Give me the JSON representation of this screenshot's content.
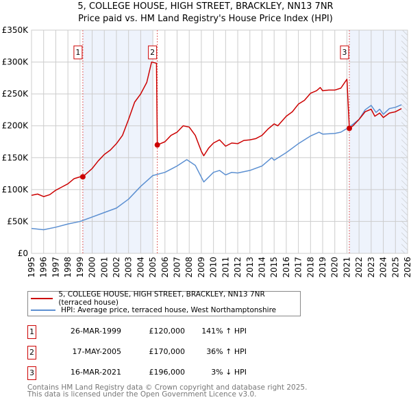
{
  "title_line1": "5, COLLEGE HOUSE, HIGH STREET, BRACKLEY, NN13 7NR",
  "title_line2": "Price paid vs. HM Land Registry's House Price Index (HPI)",
  "colors": {
    "red": "#cc0000",
    "blue": "#5b8fd1",
    "shade": "#eef3fc",
    "grid": "#cccccc"
  },
  "chart_data": {
    "type": "line",
    "title": "5, COLLEGE HOUSE, HIGH STREET, BRACKLEY, NN13 7NR — Price paid vs. HM Land Registry's House Price Index (HPI)",
    "xlim": [
      1995,
      2026
    ],
    "ylim": [
      0,
      350000
    ],
    "x_ticks": [
      "1995",
      "1996",
      "1997",
      "1998",
      "1999",
      "2000",
      "2001",
      "2002",
      "2003",
      "2004",
      "2005",
      "2006",
      "2007",
      "2008",
      "2009",
      "2010",
      "2011",
      "2012",
      "2013",
      "2014",
      "2015",
      "2016",
      "2017",
      "2018",
      "2019",
      "2020",
      "2021",
      "2022",
      "2023",
      "2024",
      "2025",
      "2026"
    ],
    "y_ticks": [
      {
        "v": 0,
        "label": "£0"
      },
      {
        "v": 50000,
        "label": "£50K"
      },
      {
        "v": 100000,
        "label": "£100K"
      },
      {
        "v": 150000,
        "label": "£150K"
      },
      {
        "v": 200000,
        "label": "£200K"
      },
      {
        "v": 250000,
        "label": "£250K"
      },
      {
        "v": 300000,
        "label": "£300K"
      },
      {
        "v": 350000,
        "label": "£350K"
      }
    ],
    "grid": true,
    "shaded_ranges": [
      [
        1999.23,
        2005.0
      ],
      [
        2021.2,
        2026
      ]
    ],
    "hatch_from": 2025.5,
    "series": [
      {
        "name": "5, COLLEGE HOUSE, HIGH STREET, BRACKLEY, NN13 7NR (terraced house)",
        "color": "#cc0000",
        "points": [
          [
            1995,
            91
          ],
          [
            1995.5,
            93
          ],
          [
            1996,
            89
          ],
          [
            1996.5,
            92
          ],
          [
            1997,
            99
          ],
          [
            1997.5,
            104
          ],
          [
            1998,
            109
          ],
          [
            1998.5,
            117
          ],
          [
            1999,
            120
          ],
          [
            1999.23,
            120
          ],
          [
            2000,
            133
          ],
          [
            2000.5,
            145
          ],
          [
            2001,
            155
          ],
          [
            2001.5,
            162
          ],
          [
            2002,
            172
          ],
          [
            2002.5,
            185
          ],
          [
            2003,
            210
          ],
          [
            2003.5,
            237
          ],
          [
            2004,
            250
          ],
          [
            2004.5,
            268
          ],
          [
            2004.9,
            300
          ],
          [
            2005.3,
            298
          ],
          [
            2005.37,
            170
          ],
          [
            2006,
            175
          ],
          [
            2006.5,
            185
          ],
          [
            2007,
            190
          ],
          [
            2007.5,
            200
          ],
          [
            2008,
            198
          ],
          [
            2008.5,
            185
          ],
          [
            2009,
            160
          ],
          [
            2009.2,
            153
          ],
          [
            2009.6,
            165
          ],
          [
            2010,
            173
          ],
          [
            2010.5,
            178
          ],
          [
            2011,
            168
          ],
          [
            2011.5,
            173
          ],
          [
            2012,
            172
          ],
          [
            2012.5,
            177
          ],
          [
            2013,
            178
          ],
          [
            2013.5,
            180
          ],
          [
            2014,
            185
          ],
          [
            2014.5,
            195
          ],
          [
            2015,
            203
          ],
          [
            2015.3,
            200
          ],
          [
            2016,
            215
          ],
          [
            2016.5,
            222
          ],
          [
            2017,
            234
          ],
          [
            2017.5,
            240
          ],
          [
            2018,
            251
          ],
          [
            2018.5,
            255
          ],
          [
            2018.8,
            260
          ],
          [
            2019,
            255
          ],
          [
            2019.5,
            256
          ],
          [
            2020,
            256
          ],
          [
            2020.5,
            259
          ],
          [
            2021,
            273
          ],
          [
            2021.2,
            196
          ],
          [
            2021.5,
            200
          ],
          [
            2022,
            210
          ],
          [
            2022.5,
            222
          ],
          [
            2023,
            226
          ],
          [
            2023.3,
            215
          ],
          [
            2023.7,
            220
          ],
          [
            2024,
            213
          ],
          [
            2024.5,
            220
          ],
          [
            2025,
            222
          ],
          [
            2025.5,
            227
          ]
        ]
      },
      {
        "name": "HPI: Average price, terraced house, West Northamptonshire",
        "color": "#5b8fd1",
        "points": [
          [
            1995,
            39
          ],
          [
            1996,
            37
          ],
          [
            1997,
            41
          ],
          [
            1998,
            46
          ],
          [
            1999,
            50
          ],
          [
            2000,
            57
          ],
          [
            2001,
            64
          ],
          [
            2002,
            71
          ],
          [
            2003,
            85
          ],
          [
            2004,
            105
          ],
          [
            2005,
            122
          ],
          [
            2006,
            127
          ],
          [
            2007,
            137
          ],
          [
            2007.8,
            147
          ],
          [
            2008.5,
            138
          ],
          [
            2009.2,
            112
          ],
          [
            2010,
            127
          ],
          [
            2010.5,
            130
          ],
          [
            2011,
            123
          ],
          [
            2011.5,
            127
          ],
          [
            2012,
            126
          ],
          [
            2013,
            130
          ],
          [
            2014,
            137
          ],
          [
            2014.8,
            150
          ],
          [
            2015,
            146
          ],
          [
            2016,
            158
          ],
          [
            2017,
            172
          ],
          [
            2018,
            184
          ],
          [
            2018.7,
            190
          ],
          [
            2019,
            187
          ],
          [
            2020,
            188
          ],
          [
            2020.5,
            190
          ],
          [
            2021.2,
            198
          ],
          [
            2022,
            210
          ],
          [
            2022.5,
            225
          ],
          [
            2023,
            232
          ],
          [
            2023.4,
            221
          ],
          [
            2023.7,
            226
          ],
          [
            2024,
            218
          ],
          [
            2024.5,
            227
          ],
          [
            2025,
            229
          ],
          [
            2025.5,
            233
          ]
        ]
      }
    ],
    "y_unit": "thousands GBP",
    "sales": [
      {
        "label": "1",
        "x": 1999.23,
        "price": 120
      },
      {
        "label": "2",
        "x": 2005.37,
        "price": 170
      },
      {
        "label": "3",
        "x": 2021.2,
        "price": 196
      }
    ]
  },
  "legend": [
    {
      "label": "5, COLLEGE HOUSE, HIGH STREET, BRACKLEY, NN13 7NR (terraced house)"
    },
    {
      "label": "HPI: Average price, terraced house, West Northamptonshire"
    }
  ],
  "table": [
    {
      "num": "1",
      "date": "26-MAR-1999",
      "price": "£120,000",
      "hpi": "141% ↑ HPI"
    },
    {
      "num": "2",
      "date": "17-MAY-2005",
      "price": "£170,000",
      "hpi": "36% ↑ HPI"
    },
    {
      "num": "3",
      "date": "16-MAR-2021",
      "price": "£196,000",
      "hpi": "3% ↓ HPI"
    }
  ],
  "footer_line1": "Contains HM Land Registry data © Crown copyright and database right 2025.",
  "footer_line2": "This data is licensed under the Open Government Licence v3.0."
}
